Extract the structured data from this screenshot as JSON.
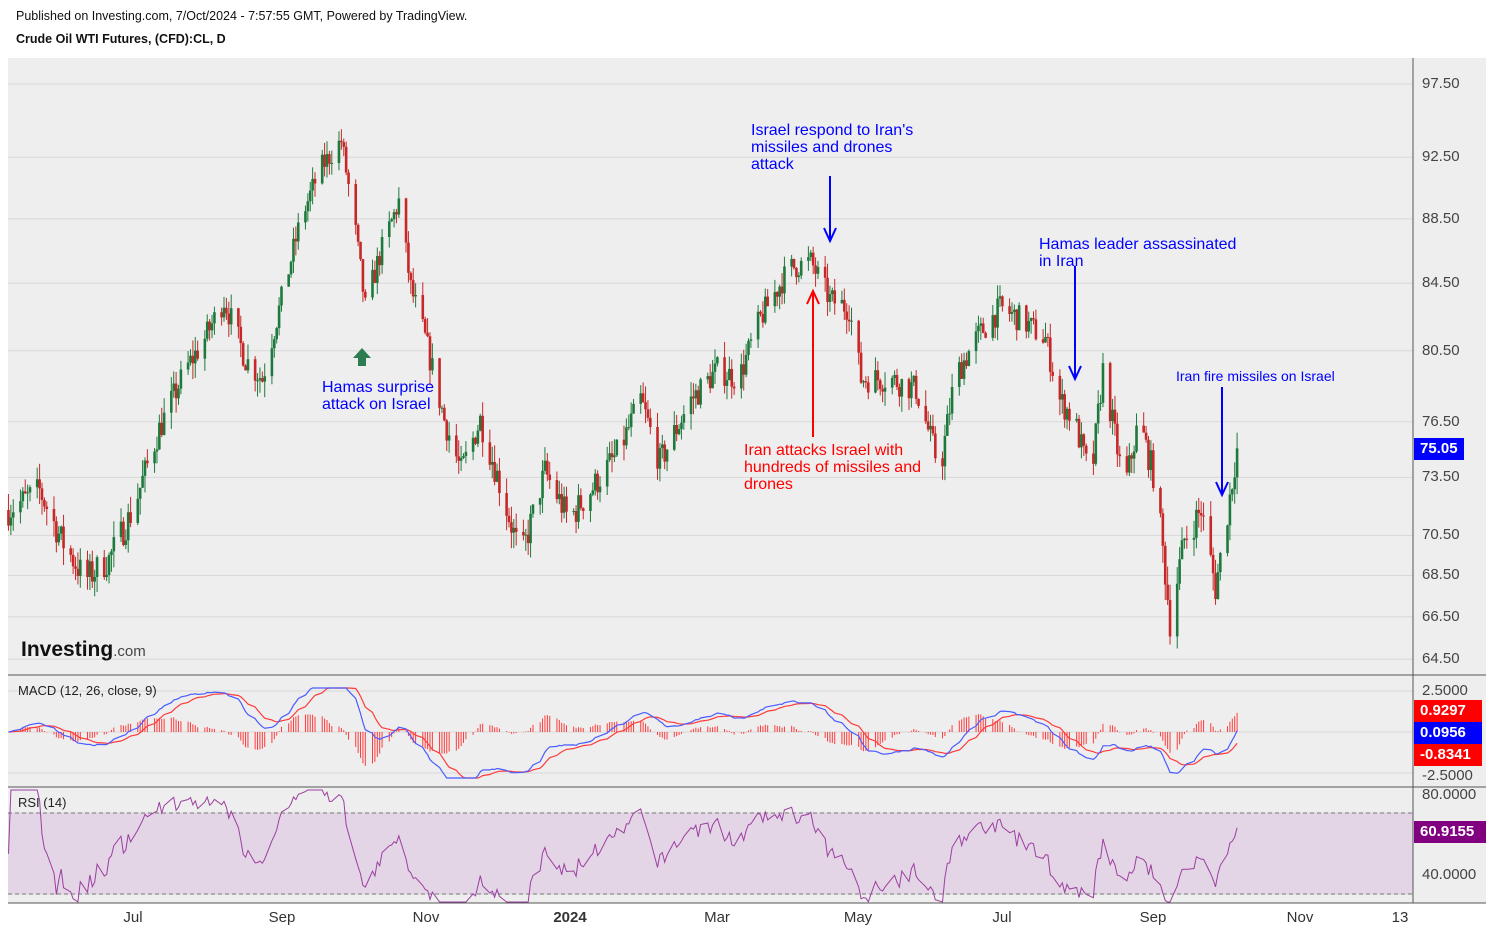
{
  "header": {
    "published": "Published on Investing.com, 7/Oct/2024 - 7:57:55 GMT, Powered by TradingView.",
    "symbol": "Crude Oil WTI Futures, (CFD):CL, D"
  },
  "logo": {
    "main": "Investing",
    "suffix": ".com"
  },
  "indicators": {
    "macd_label": "MACD (12, 26, close, 9)",
    "rsi_label": "RSI (14)"
  },
  "colors": {
    "up": "#1e7a3c",
    "down": "#c62828",
    "macd": "#4a5cff",
    "signal": "#ff3b3b",
    "hist": "#ff3b3b",
    "rsi": "#9c3fa0",
    "rsi_band": "#e3d4e6",
    "price_tag": "#0000ff",
    "rsi_tag": "#800080"
  },
  "chart_data": {
    "type": "candlestick",
    "title": "Crude Oil WTI Futures, (CFD):CL, D",
    "y_scale": "log",
    "ylim": [
      63.5,
      100
    ],
    "y_ticks": [
      "97.50",
      "92.50",
      "88.50",
      "84.50",
      "80.50",
      "76.50",
      "73.50",
      "70.50",
      "68.50",
      "66.50",
      "64.50"
    ],
    "x_ticks": [
      "Jul",
      "Sep",
      "Nov",
      "2024",
      "Mar",
      "May",
      "Jul",
      "Sep",
      "Nov",
      "13"
    ],
    "last_price": "75.05",
    "key_closes": [
      [
        "2023-05-10",
        71.8
      ],
      [
        "2023-05-23",
        72.8
      ],
      [
        "2023-06-01",
        70.3
      ],
      [
        "2023-06-11",
        68.3
      ],
      [
        "2023-06-21",
        69.3
      ],
      [
        "2023-07-01",
        71.8
      ],
      [
        "2023-07-12",
        76.1
      ],
      [
        "2023-07-23",
        79.4
      ],
      [
        "2023-07-31",
        81.2
      ],
      [
        "2023-08-08",
        83.5
      ],
      [
        "2023-08-17",
        80.0
      ],
      [
        "2023-08-24",
        78.9
      ],
      [
        "2023-09-01",
        83.5
      ],
      [
        "2023-09-09",
        88.4
      ],
      [
        "2023-09-17",
        91.7
      ],
      [
        "2023-09-26",
        93.6
      ],
      [
        "2023-10-02",
        87.6
      ],
      [
        "2023-10-06",
        83.0
      ],
      [
        "2023-10-12",
        86.2
      ],
      [
        "2023-10-20",
        89.6
      ],
      [
        "2023-10-25",
        84.2
      ],
      [
        "2023-10-31",
        81.2
      ],
      [
        "2023-11-08",
        76.6
      ],
      [
        "2023-11-15",
        73.8
      ],
      [
        "2023-11-23",
        76.6
      ],
      [
        "2023-12-01",
        73.2
      ],
      [
        "2023-12-10",
        69.3
      ],
      [
        "2023-12-20",
        73.8
      ],
      [
        "2023-12-30",
        71.3
      ],
      [
        "2024-01-08",
        72.8
      ],
      [
        "2024-01-20",
        74.9
      ],
      [
        "2024-01-29",
        77.7
      ],
      [
        "2024-02-06",
        74.3
      ],
      [
        "2024-02-19",
        77.7
      ],
      [
        "2024-03-01",
        79.4
      ],
      [
        "2024-03-10",
        78.9
      ],
      [
        "2024-03-19",
        82.4
      ],
      [
        "2024-03-31",
        85.4
      ],
      [
        "2024-04-09",
        85.8
      ],
      [
        "2024-04-17",
        83.5
      ],
      [
        "2024-04-25",
        83.0
      ],
      [
        "2024-04-30",
        78.9
      ],
      [
        "2024-05-12",
        78.9
      ],
      [
        "2024-05-23",
        78.3
      ],
      [
        "2024-06-02",
        73.8
      ],
      [
        "2024-06-08",
        78.9
      ],
      [
        "2024-06-17",
        81.2
      ],
      [
        "2024-06-27",
        83.0
      ],
      [
        "2024-07-05",
        82.4
      ],
      [
        "2024-07-16",
        81.2
      ],
      [
        "2024-07-22",
        77.7
      ],
      [
        "2024-07-28",
        76.6
      ],
      [
        "2024-08-04",
        73.2
      ],
      [
        "2024-08-09",
        79.4
      ],
      [
        "2024-08-18",
        72.8
      ],
      [
        "2024-08-24",
        76.6
      ],
      [
        "2024-08-31",
        73.2
      ],
      [
        "2024-09-06",
        66.3
      ],
      [
        "2024-09-12",
        70.3
      ],
      [
        "2024-09-19",
        71.8
      ],
      [
        "2024-09-25",
        67.9
      ],
      [
        "2024-09-29",
        70.8
      ],
      [
        "2024-10-04",
        75.05
      ]
    ],
    "macd": {
      "params": "12, 26, close, 9",
      "y_ticks": [
        "2.5000",
        "-2.5000"
      ],
      "last": {
        "hist": "0.9297",
        "macd": "0.0956",
        "signal": "-0.8341"
      }
    },
    "rsi": {
      "period": 14,
      "y_ticks": [
        "80.0000",
        "40.0000"
      ],
      "band": [
        30,
        70
      ],
      "last": "60.9155"
    },
    "annotations": [
      {
        "text": "Israel respond to Iran's\nmissiles and drones\nattack",
        "color": "blue"
      },
      {
        "text": "Hamas leader assassinated\nin Iran",
        "color": "blue"
      },
      {
        "text": "Iran fire missiles on Israel",
        "color": "blue"
      },
      {
        "text": "Hamas surprise\nattack on Israel",
        "color": "blue"
      },
      {
        "text": "Iran attacks Israel with\nhundreds of missiles and\ndrones",
        "color": "red"
      }
    ]
  }
}
